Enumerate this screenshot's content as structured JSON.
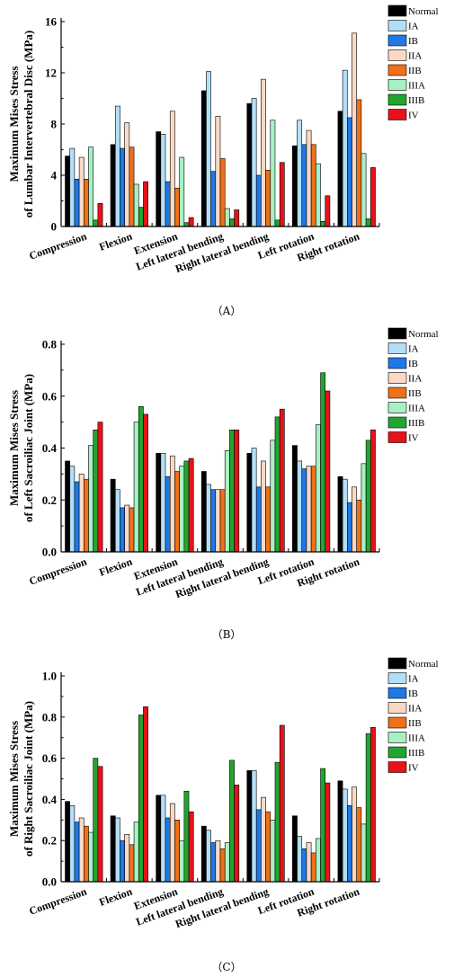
{
  "legend_series": [
    "Normal",
    "IA",
    "IB",
    "IIA",
    "IIB",
    "IIIA",
    "IIIB",
    "IV"
  ],
  "colors": {
    "Normal": "#000000",
    "IA": "#b3def7",
    "IB": "#1f78e6",
    "IIA": "#f9d9c3",
    "IIB": "#f07018",
    "IIIA": "#a8f0c4",
    "IIIB": "#22a52e",
    "IV": "#e8121a"
  },
  "categories": [
    "Compression",
    "Flexion",
    "Extension",
    "Left lateral bending",
    "Right lateral bending",
    "Left rotation",
    "Right rotation"
  ],
  "chart_data": [
    {
      "type": "bar",
      "panel_label": "（A）",
      "ylabel_lines": [
        "Maximum Mises Stress",
        "of Lumbar Intervertebral Disc (MPa)"
      ],
      "ylim": [
        0,
        16
      ],
      "yticks": [
        0,
        4,
        8,
        12,
        16
      ],
      "ytick_labels": [
        "0",
        "4",
        "8",
        "12",
        "16"
      ],
      "categories": [
        "Compression",
        "Flexion",
        "Extension",
        "Left lateral bending",
        "Right lateral bending",
        "Left rotation",
        "Right rotation"
      ],
      "series": [
        {
          "name": "Normal",
          "values": [
            5.5,
            6.4,
            7.4,
            10.6,
            9.6,
            6.3,
            9.0
          ]
        },
        {
          "name": "IA",
          "values": [
            6.1,
            9.4,
            7.2,
            12.1,
            10.0,
            8.3,
            12.2
          ]
        },
        {
          "name": "IB",
          "values": [
            3.7,
            6.1,
            3.5,
            4.3,
            4.0,
            6.4,
            8.5
          ]
        },
        {
          "name": "IIA",
          "values": [
            5.4,
            8.1,
            9.0,
            8.6,
            11.5,
            7.5,
            15.1
          ]
        },
        {
          "name": "IIB",
          "values": [
            3.7,
            6.2,
            3.0,
            5.3,
            4.4,
            6.4,
            9.9
          ]
        },
        {
          "name": "IIIA",
          "values": [
            6.2,
            3.3,
            5.4,
            1.4,
            8.3,
            4.9,
            5.7
          ]
        },
        {
          "name": "IIIB",
          "values": [
            0.5,
            1.5,
            0.3,
            0.6,
            0.5,
            0.4,
            0.6
          ]
        },
        {
          "name": "IV",
          "values": [
            1.8,
            3.5,
            0.7,
            1.3,
            5.0,
            2.4,
            4.6
          ]
        }
      ]
    },
    {
      "type": "bar",
      "panel_label": "（B）",
      "ylabel_lines": [
        "Maximum Mises Stress",
        "of Left Sacroiliac Joint (MPa)"
      ],
      "ylim": [
        0,
        0.8
      ],
      "yticks": [
        0,
        0.2,
        0.4,
        0.6,
        0.8
      ],
      "ytick_labels": [
        "0.0",
        "0.2",
        "0.4",
        "0.6",
        "0.8"
      ],
      "categories": [
        "Compression",
        "Flexion",
        "Extension",
        "Left lateral bending",
        "Right lateral bending",
        "Left rotation",
        "Right rotation"
      ],
      "series": [
        {
          "name": "Normal",
          "values": [
            0.35,
            0.28,
            0.38,
            0.31,
            0.38,
            0.41,
            0.29
          ]
        },
        {
          "name": "IA",
          "values": [
            0.33,
            0.24,
            0.38,
            0.26,
            0.4,
            0.35,
            0.28
          ]
        },
        {
          "name": "IB",
          "values": [
            0.27,
            0.17,
            0.29,
            0.24,
            0.25,
            0.32,
            0.19
          ]
        },
        {
          "name": "IIA",
          "values": [
            0.3,
            0.18,
            0.37,
            0.24,
            0.35,
            0.33,
            0.25
          ]
        },
        {
          "name": "IIB",
          "values": [
            0.28,
            0.17,
            0.31,
            0.24,
            0.25,
            0.33,
            0.2
          ]
        },
        {
          "name": "IIIA",
          "values": [
            0.41,
            0.5,
            0.33,
            0.39,
            0.43,
            0.49,
            0.34
          ]
        },
        {
          "name": "IIIB",
          "values": [
            0.47,
            0.56,
            0.35,
            0.47,
            0.52,
            0.69,
            0.43
          ]
        },
        {
          "name": "IV",
          "values": [
            0.5,
            0.53,
            0.36,
            0.47,
            0.55,
            0.62,
            0.47
          ]
        }
      ]
    },
    {
      "type": "bar",
      "panel_label": "（C）",
      "ylabel_lines": [
        "Maximum Mises Stress",
        "of Right Sacroiliac Joint (MPa)"
      ],
      "ylim": [
        0,
        1.0
      ],
      "yticks": [
        0,
        0.2,
        0.4,
        0.6,
        0.8,
        1.0
      ],
      "ytick_labels": [
        "0.0",
        "0.2",
        "0.4",
        "0.6",
        "0.8",
        "1.0"
      ],
      "categories": [
        "Compression",
        "Flexion",
        "Extension",
        "Left lateral bending",
        "Right lateral bending",
        "Left rotation",
        "Right rotation"
      ],
      "series": [
        {
          "name": "Normal",
          "values": [
            0.39,
            0.32,
            0.42,
            0.27,
            0.54,
            0.32,
            0.49
          ]
        },
        {
          "name": "IA",
          "values": [
            0.37,
            0.31,
            0.42,
            0.25,
            0.54,
            0.22,
            0.45
          ]
        },
        {
          "name": "IB",
          "values": [
            0.29,
            0.2,
            0.31,
            0.19,
            0.35,
            0.16,
            0.37
          ]
        },
        {
          "name": "IIA",
          "values": [
            0.31,
            0.23,
            0.38,
            0.2,
            0.41,
            0.19,
            0.46
          ]
        },
        {
          "name": "IIB",
          "values": [
            0.27,
            0.18,
            0.3,
            0.16,
            0.34,
            0.14,
            0.36
          ]
        },
        {
          "name": "IIIA",
          "values": [
            0.24,
            0.29,
            0.2,
            0.19,
            0.3,
            0.21,
            0.28
          ]
        },
        {
          "name": "IIIB",
          "values": [
            0.6,
            0.81,
            0.44,
            0.59,
            0.58,
            0.55,
            0.72
          ]
        },
        {
          "name": "IV",
          "values": [
            0.56,
            0.85,
            0.34,
            0.47,
            0.76,
            0.48,
            0.75
          ]
        }
      ]
    }
  ]
}
